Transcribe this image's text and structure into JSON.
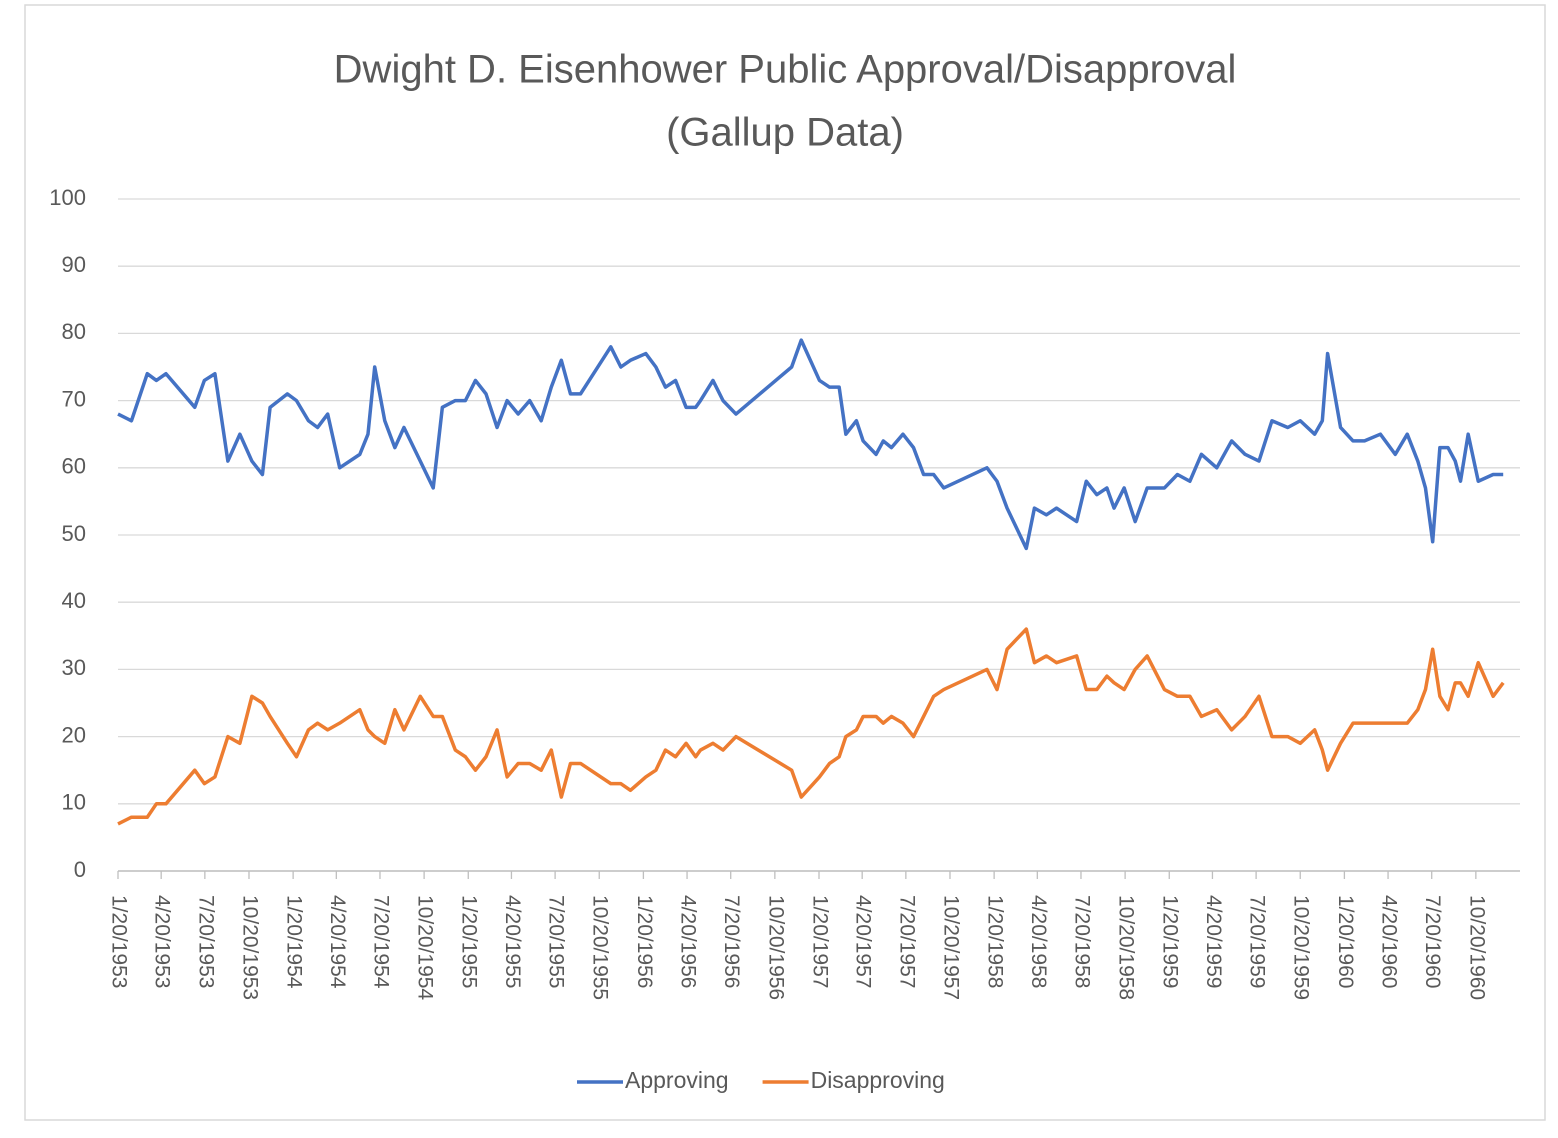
{
  "chart_data": {
    "type": "line",
    "title": [
      "Dwight D. Eisenhower Public Approval/Disapproval",
      "(Gallup Data)"
    ],
    "x": [
      "1953-01-20",
      "1953-02-17",
      "1953-03-22",
      "1953-04-10",
      "1953-04-30",
      "1953-06-29",
      "1953-07-19",
      "1953-08-10",
      "1953-09-06",
      "1953-10-01",
      "1953-10-26",
      "1953-11-17",
      "1953-12-03",
      "1954-01-08",
      "1954-01-27",
      "1954-02-21",
      "1954-03-12",
      "1954-04-02",
      "1954-04-27",
      "1954-06-08",
      "1954-06-25",
      "1954-07-09",
      "1954-07-30",
      "1954-08-20",
      "1954-09-08",
      "1954-10-12",
      "1954-11-08",
      "1954-11-27",
      "1954-12-24",
      "1955-01-14",
      "1955-02-04",
      "1955-02-26",
      "1955-03-21",
      "1955-04-11",
      "1955-05-04",
      "1955-05-28",
      "1955-06-21",
      "1955-07-12",
      "1955-08-02",
      "1955-08-21",
      "1955-09-11",
      "1955-11-13",
      "1955-12-04",
      "1955-12-24",
      "1956-01-25",
      "1956-02-15",
      "1956-03-06",
      "1956-03-27",
      "1956-04-18",
      "1956-05-08",
      "1956-05-18",
      "1956-06-13",
      "1956-07-04",
      "1956-07-31",
      "1956-11-24",
      "1956-12-14",
      "1957-01-21",
      "1957-02-11",
      "1957-03-03",
      "1957-03-17",
      "1957-04-08",
      "1957-04-22",
      "1957-05-19",
      "1957-06-03",
      "1957-06-20",
      "1957-07-14",
      "1957-08-05",
      "1957-08-26",
      "1957-09-16",
      "1957-10-07",
      "1958-01-05",
      "1958-01-26",
      "1958-02-16",
      "1958-03-28",
      "1958-04-14",
      "1958-05-09",
      "1958-05-30",
      "1958-07-11",
      "1958-07-31",
      "1958-08-22",
      "1958-09-12",
      "1958-09-27",
      "1958-10-18",
      "1958-11-10",
      "1958-12-05",
      "1959-01-10",
      "1959-02-06",
      "1959-03-04",
      "1959-03-28",
      "1959-04-29",
      "1959-05-30",
      "1959-06-27",
      "1959-07-26",
      "1959-08-22",
      "1959-09-24",
      "1959-10-20",
      "1959-11-19",
      "1959-12-05",
      "1959-12-16",
      "1960-01-12",
      "1960-02-07",
      "1960-03-02",
      "1960-04-04",
      "1960-05-05",
      "1960-05-30",
      "1960-06-21",
      "1960-07-07",
      "1960-07-22",
      "1960-08-06",
      "1960-08-23",
      "1960-09-07",
      "1960-09-18",
      "1960-10-04",
      "1960-10-25",
      "1960-11-25",
      "1960-12-16"
    ],
    "series": [
      {
        "name": "Approving",
        "color": "#4472c4",
        "values": [
          68,
          67,
          74,
          73,
          74,
          69,
          73,
          74,
          61,
          65,
          61,
          59,
          69,
          71,
          70,
          67,
          66,
          68,
          60,
          62,
          65,
          75,
          67,
          63,
          66,
          61,
          57,
          69,
          70,
          70,
          73,
          71,
          66,
          70,
          68,
          70,
          67,
          72,
          76,
          71,
          71,
          78,
          75,
          76,
          77,
          75,
          72,
          73,
          69,
          69,
          70,
          73,
          70,
          68,
          75,
          79,
          73,
          72,
          72,
          65,
          67,
          64,
          62,
          64,
          63,
          65,
          63,
          59,
          59,
          57,
          60,
          58,
          54,
          48,
          54,
          53,
          54,
          52,
          58,
          56,
          57,
          54,
          57,
          52,
          57,
          57,
          59,
          58,
          62,
          60,
          64,
          62,
          61,
          67,
          66,
          67,
          65,
          67,
          77,
          66,
          64,
          64,
          65,
          62,
          65,
          61,
          57,
          49,
          63,
          63,
          61,
          58,
          65,
          58,
          59,
          59
        ]
      },
      {
        "name": "Disapproving",
        "color": "#ed7d31",
        "values": [
          7,
          8,
          8,
          10,
          10,
          15,
          13,
          14,
          20,
          19,
          26,
          25,
          23,
          19,
          17,
          21,
          22,
          21,
          22,
          24,
          21,
          20,
          19,
          24,
          21,
          26,
          23,
          23,
          18,
          17,
          15,
          17,
          21,
          14,
          16,
          16,
          15,
          18,
          11,
          16,
          16,
          13,
          13,
          12,
          14,
          15,
          18,
          17,
          19,
          17,
          18,
          19,
          18,
          20,
          15,
          11,
          14,
          16,
          17,
          20,
          21,
          23,
          23,
          22,
          23,
          22,
          20,
          23,
          26,
          27,
          30,
          27,
          33,
          36,
          31,
          32,
          31,
          32,
          27,
          27,
          29,
          28,
          27,
          30,
          32,
          27,
          26,
          26,
          23,
          24,
          21,
          23,
          26,
          20,
          20,
          19,
          21,
          18,
          15,
          19,
          22,
          22,
          22,
          22,
          22,
          24,
          27,
          33,
          26,
          24,
          28,
          28,
          26,
          31,
          26,
          28
        ]
      }
    ],
    "xlim": [
      "1953-01-20",
      "1961-01-20"
    ],
    "xticks": [
      {
        "value": "1953-01-20",
        "label": "1/20/1953"
      },
      {
        "value": "1953-04-20",
        "label": "4/20/1953"
      },
      {
        "value": "1953-07-20",
        "label": "7/20/1953"
      },
      {
        "value": "1953-10-20",
        "label": "10/20/1953"
      },
      {
        "value": "1954-01-20",
        "label": "1/20/1954"
      },
      {
        "value": "1954-04-20",
        "label": "4/20/1954"
      },
      {
        "value": "1954-07-20",
        "label": "7/20/1954"
      },
      {
        "value": "1954-10-20",
        "label": "10/20/1954"
      },
      {
        "value": "1955-01-20",
        "label": "1/20/1955"
      },
      {
        "value": "1955-04-20",
        "label": "4/20/1955"
      },
      {
        "value": "1955-07-20",
        "label": "7/20/1955"
      },
      {
        "value": "1955-10-20",
        "label": "10/20/1955"
      },
      {
        "value": "1956-01-20",
        "label": "1/20/1956"
      },
      {
        "value": "1956-04-20",
        "label": "4/20/1956"
      },
      {
        "value": "1956-07-20",
        "label": "7/20/1956"
      },
      {
        "value": "1956-10-20",
        "label": "10/20/1956"
      },
      {
        "value": "1957-01-20",
        "label": "1/20/1957"
      },
      {
        "value": "1957-04-20",
        "label": "4/20/1957"
      },
      {
        "value": "1957-07-20",
        "label": "7/20/1957"
      },
      {
        "value": "1957-10-20",
        "label": "10/20/1957"
      },
      {
        "value": "1958-01-20",
        "label": "1/20/1958"
      },
      {
        "value": "1958-04-20",
        "label": "4/20/1958"
      },
      {
        "value": "1958-07-20",
        "label": "7/20/1958"
      },
      {
        "value": "1958-10-20",
        "label": "10/20/1958"
      },
      {
        "value": "1959-01-20",
        "label": "1/20/1959"
      },
      {
        "value": "1959-04-20",
        "label": "4/20/1959"
      },
      {
        "value": "1959-07-20",
        "label": "7/20/1959"
      },
      {
        "value": "1959-10-20",
        "label": "10/20/1959"
      },
      {
        "value": "1960-01-20",
        "label": "1/20/1960"
      },
      {
        "value": "1960-04-20",
        "label": "4/20/1960"
      },
      {
        "value": "1960-07-20",
        "label": "7/20/1960"
      },
      {
        "value": "1960-10-20",
        "label": "10/20/1960"
      }
    ],
    "ylim": [
      0,
      100
    ],
    "yticks": [
      0,
      10,
      20,
      30,
      40,
      50,
      60,
      70,
      80,
      90,
      100
    ],
    "grid": true,
    "legend": "bottom"
  }
}
